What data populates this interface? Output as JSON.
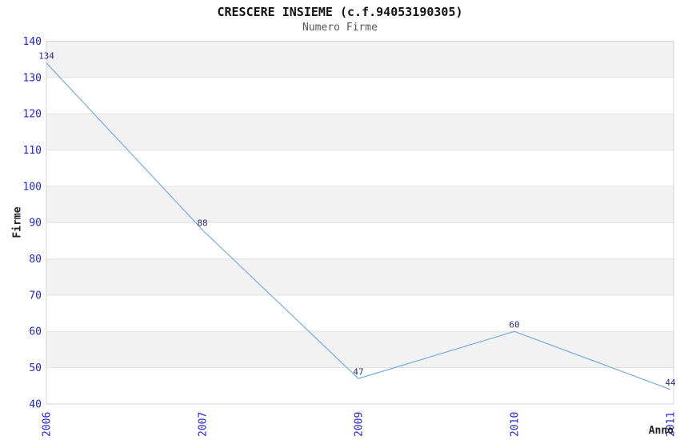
{
  "chart_data": {
    "type": "line",
    "title": "CRESCERE INSIEME (c.f.94053190305)",
    "subtitle": "Numero Firme",
    "xlabel": "Anno",
    "ylabel": "Firme",
    "categories": [
      "2006",
      "2007",
      "2009",
      "2010",
      "2011"
    ],
    "values": [
      134,
      88,
      47,
      60,
      44
    ],
    "ylim": [
      40,
      140
    ],
    "ytick_step": 10,
    "yticks": [
      40,
      50,
      60,
      70,
      80,
      90,
      100,
      110,
      120,
      130,
      140
    ],
    "grid": "horizontal",
    "bands": "alternating-gray-from-top",
    "legend": "none",
    "colors": {
      "line": "#7aacde",
      "tick_label": "#2424cc",
      "data_label": "#2e2e80",
      "band": "#f2f2f2",
      "gridline": "#e2e2e2",
      "border": "#d4d4d4",
      "title": "#111111",
      "subtitle": "#555555",
      "axis_title": "#222222",
      "background": "#ffffff"
    }
  }
}
